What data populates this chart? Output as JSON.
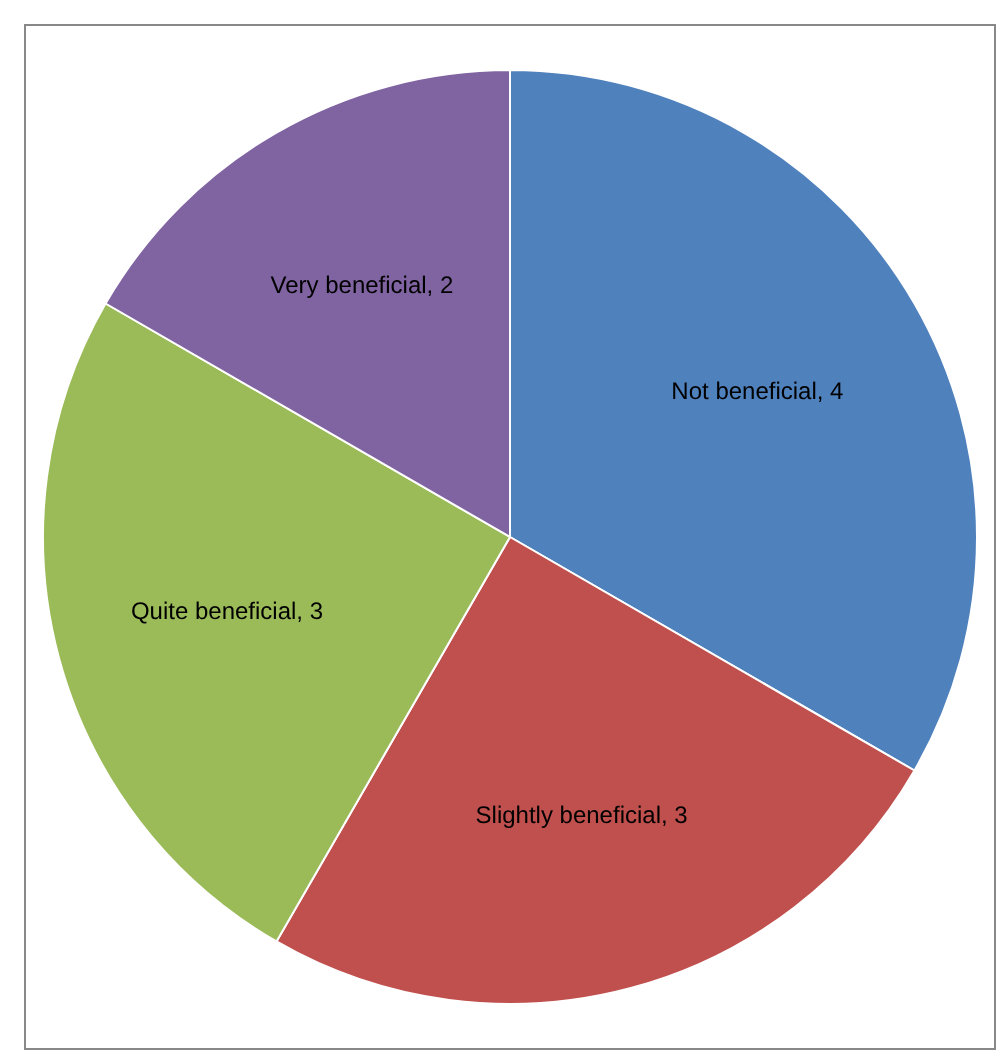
{
  "chart_data": {
    "type": "pie",
    "categories": [
      "Not beneficial",
      "Slightly beneficial",
      "Quite beneficial",
      "Very beneficial"
    ],
    "values": [
      4,
      3,
      3,
      2
    ],
    "value_labels": [
      ", 4",
      ", 3",
      ", 3",
      ", 2"
    ],
    "colors": [
      "#4f81bd",
      "#c0504d",
      "#9bbb59",
      "#8064a2"
    ],
    "legend": false
  }
}
